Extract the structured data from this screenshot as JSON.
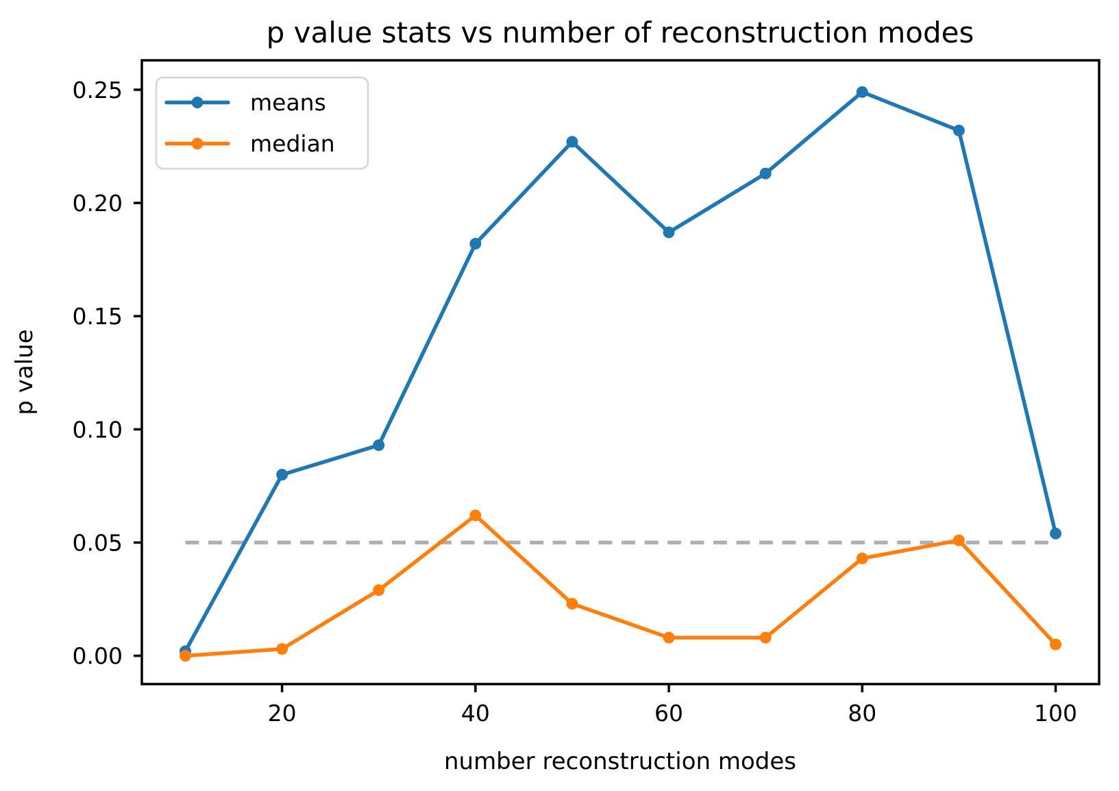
{
  "title": "p value stats vs number of reconstruction modes",
  "axes": {
    "xlabel": "number reconstruction modes",
    "ylabel": "p value"
  },
  "legend": {
    "entries": [
      {
        "label": "means",
        "color": "#1f77b4"
      },
      {
        "label": "median",
        "color": "#ff7f0e"
      }
    ],
    "position": "upper left"
  },
  "colors": {
    "means": "#1f77b4",
    "median": "#ff7f0e",
    "reference_line": "#b0b0b0",
    "axes_frame": "#000000",
    "legend_border": "#d5d5d5",
    "background": "#ffffff"
  },
  "chart_data": {
    "type": "line",
    "title": "p value stats vs number of reconstruction modes",
    "xlabel": "number reconstruction modes",
    "ylabel": "p value",
    "x": [
      10,
      20,
      30,
      40,
      50,
      60,
      70,
      80,
      90,
      100
    ],
    "series": [
      {
        "name": "means",
        "color": "#1f77b4",
        "values": [
          0.002,
          0.08,
          0.093,
          0.182,
          0.227,
          0.187,
          0.213,
          0.249,
          0.232,
          0.054
        ]
      },
      {
        "name": "median",
        "color": "#ff7f0e",
        "values": [
          0.0,
          0.003,
          0.029,
          0.062,
          0.023,
          0.008,
          0.008,
          0.043,
          0.051,
          0.005
        ]
      }
    ],
    "reference_line": {
      "y": 0.05,
      "style": "dashed",
      "color": "#b0b0b0"
    },
    "xticks": [
      20,
      40,
      60,
      80,
      100
    ],
    "xtick_labels": [
      "20",
      "40",
      "60",
      "80",
      "100"
    ],
    "yticks": [
      0.0,
      0.05,
      0.1,
      0.15,
      0.2,
      0.25
    ],
    "ytick_labels": [
      "0.00",
      "0.05",
      "0.10",
      "0.15",
      "0.20",
      "0.25"
    ],
    "xlim": [
      5.5,
      104.5
    ],
    "ylim": [
      -0.0125,
      0.263
    ],
    "grid": false,
    "legend_position": "upper left",
    "marker": "o"
  }
}
